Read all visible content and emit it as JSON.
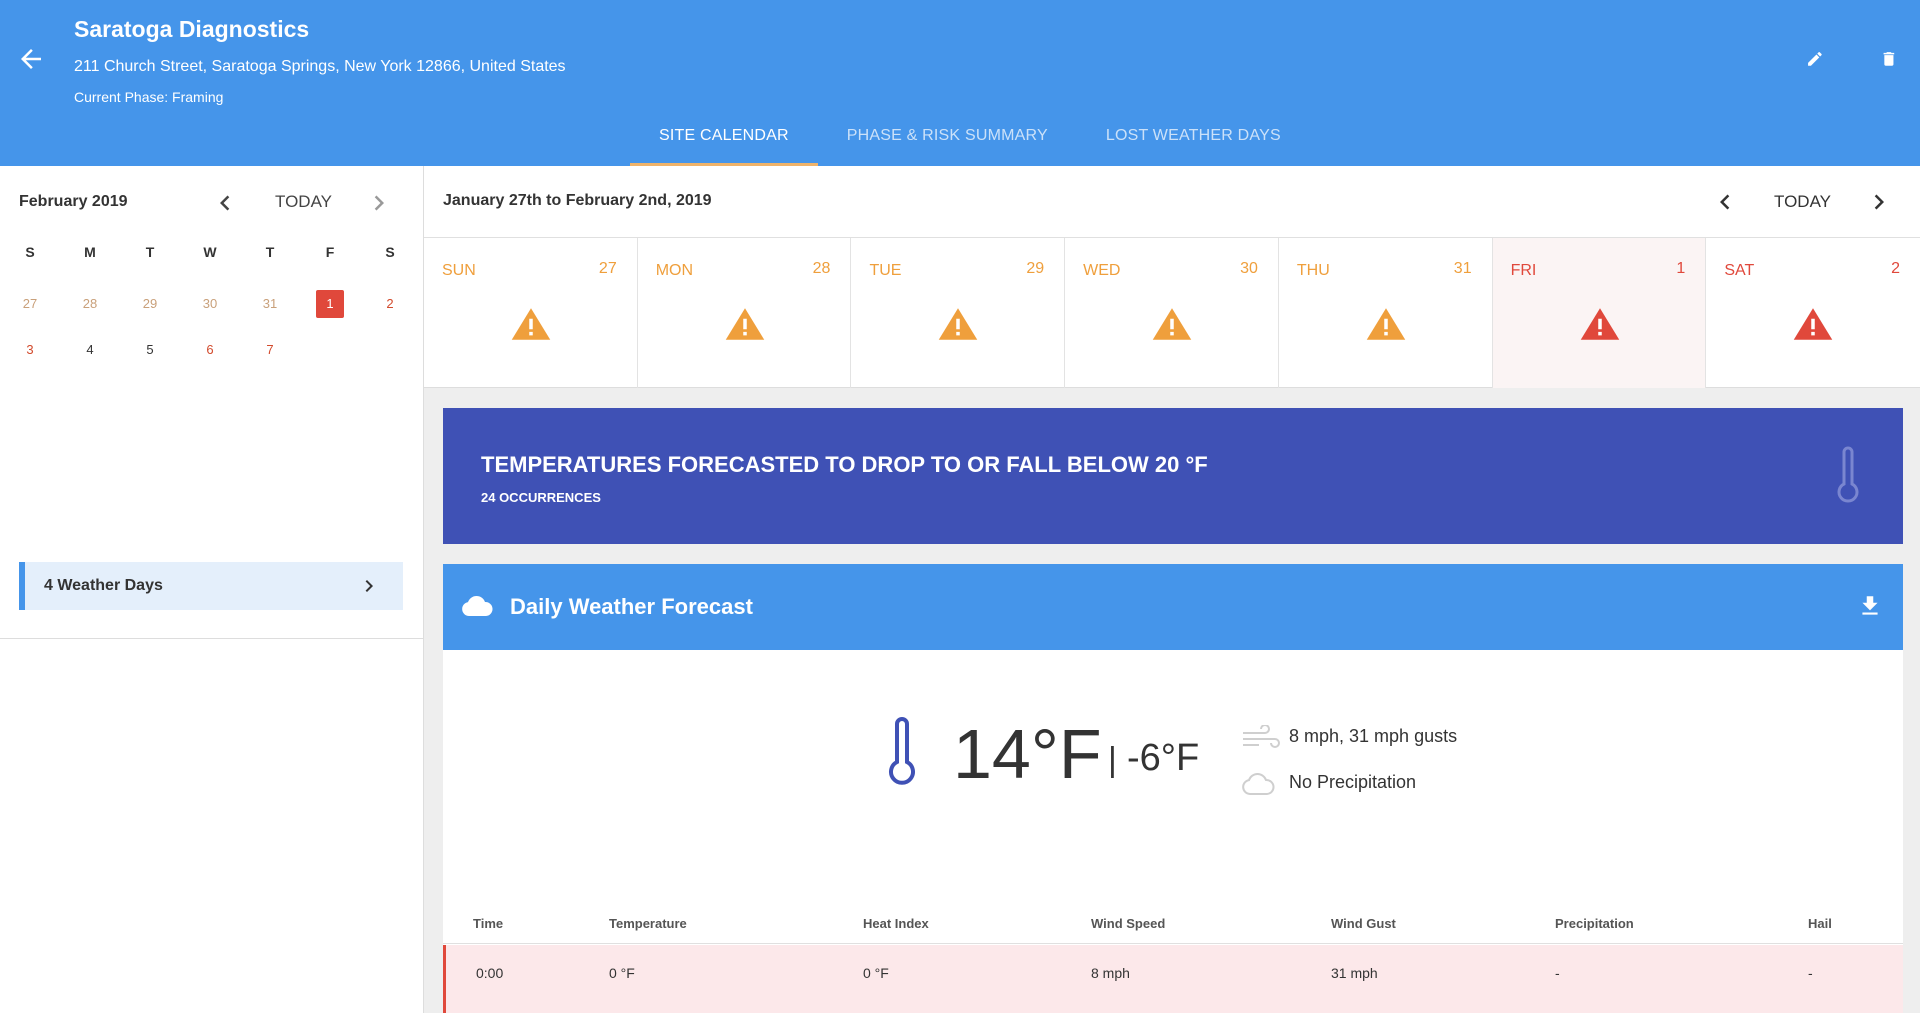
{
  "header": {
    "site_name": "Saratoga Diagnostics",
    "address": "211 Church Street, Saratoga Springs, New York 12866, United States",
    "phase": "Current Phase: Framing",
    "tabs": [
      {
        "label": "SITE CALENDAR",
        "active": true
      },
      {
        "label": "PHASE & RISK SUMMARY",
        "active": false
      },
      {
        "label": "LOST WEATHER DAYS",
        "active": false
      }
    ],
    "icons": {
      "back": "arrow-left-icon",
      "edit": "pencil-icon",
      "delete": "trash-icon"
    }
  },
  "mini_calendar": {
    "month": "February 2019",
    "today_label": "TODAY",
    "weekday_heads": [
      "S",
      "M",
      "T",
      "W",
      "T",
      "F",
      "S"
    ],
    "week1": [
      "27",
      "28",
      "29",
      "30",
      "31",
      "1",
      "2"
    ],
    "week2": [
      "3",
      "4",
      "5",
      "6",
      "7"
    ],
    "selected": "1"
  },
  "weather_days": {
    "label": "4 Weather Days"
  },
  "week_view": {
    "range": "January 27th to February 2nd, 2019",
    "today_label": "TODAY",
    "days": [
      {
        "name": "SUN",
        "num": "27",
        "level": "warning"
      },
      {
        "name": "MON",
        "num": "28",
        "level": "warning"
      },
      {
        "name": "TUE",
        "num": "29",
        "level": "warning"
      },
      {
        "name": "WED",
        "num": "30",
        "level": "warning"
      },
      {
        "name": "THU",
        "num": "31",
        "level": "warning"
      },
      {
        "name": "FRI",
        "num": "1",
        "level": "danger"
      },
      {
        "name": "SAT",
        "num": "2",
        "level": "danger"
      }
    ]
  },
  "alert": {
    "title": "TEMPERATURES FORECASTED TO DROP TO OR FALL BELOW 20 °F",
    "subtitle": "24 OCCURRENCES"
  },
  "forecast": {
    "title": "Daily Weather Forecast",
    "high": "14°F",
    "separator": "|",
    "low": "-6°F",
    "wind": "8 mph, 31 mph gusts",
    "precip": "No Precipitation",
    "columns": [
      "Time",
      "Temperature",
      "Heat Index",
      "Wind Speed",
      "Wind Gust",
      "Precipitation",
      "Hail"
    ],
    "rows": [
      {
        "time": "0:00",
        "temperature": "0 °F",
        "heat_index": "0 °F",
        "wind_speed": "8 mph",
        "wind_gust": "31 mph",
        "precipitation": "-",
        "hail": "-"
      }
    ]
  },
  "colors": {
    "primary": "#4595ea",
    "indigo": "#3f51b5",
    "warning": "#ef9f3c",
    "danger": "#e0483b",
    "tab_indicator": "#efb36a"
  }
}
